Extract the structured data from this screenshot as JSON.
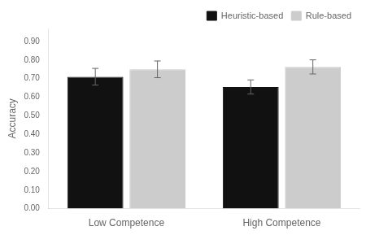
{
  "chart_data": {
    "type": "bar",
    "categories": [
      "Low Competence",
      "High Competence"
    ],
    "series": [
      {
        "name": "Heuristic-based",
        "color": "#111111",
        "values": [
          0.71,
          0.655
        ],
        "errors": [
          0.045,
          0.038
        ]
      },
      {
        "name": "Rule-based",
        "color": "#cccccc",
        "values": [
          0.75,
          0.763
        ],
        "errors": [
          0.045,
          0.038
        ]
      }
    ],
    "ylabel": "Accuracy",
    "ylim": [
      0.0,
      0.97
    ],
    "yticks": [
      {
        "value": 0.0,
        "label": "0.00"
      },
      {
        "value": 0.1,
        "label": "0.10"
      },
      {
        "value": 0.2,
        "label": "0.20"
      },
      {
        "value": 0.3,
        "label": "0.30"
      },
      {
        "value": 0.4,
        "label": "0.40"
      },
      {
        "value": 0.5,
        "label": "0.50"
      },
      {
        "value": 0.6,
        "label": "0.60"
      },
      {
        "value": 0.7,
        "label": "0.70"
      },
      {
        "value": 0.8,
        "label": "0.80"
      },
      {
        "value": 0.9,
        "label": "0.90"
      }
    ],
    "grid": false,
    "legend": "upper right"
  }
}
